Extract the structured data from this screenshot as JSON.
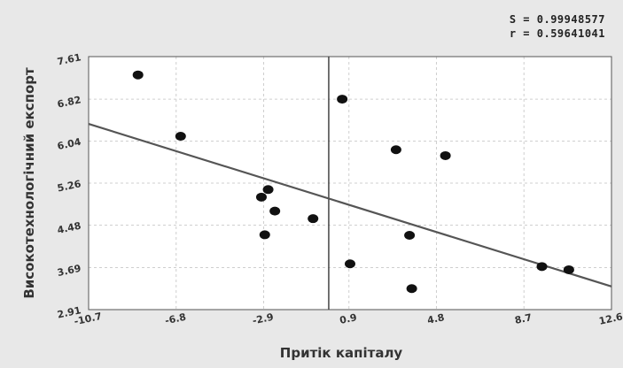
{
  "stats": {
    "s_text": "S = 0.99948577",
    "r_text": "r = 0.59641041"
  },
  "chart_data": {
    "type": "scatter",
    "xlabel": "Притік капіталу",
    "ylabel": "Високотехнологічний експорт",
    "xlim": [
      -10.7,
      12.6
    ],
    "ylim": [
      2.91,
      7.61
    ],
    "x_ticks": [
      -10.7,
      -6.8,
      -2.9,
      0.9,
      4.8,
      8.7,
      12.6
    ],
    "x_tick_labels": [
      "-10.7",
      "-6.8",
      "-2.9",
      "0.9",
      "4.8",
      "8.7",
      "12.6"
    ],
    "y_ticks": [
      2.91,
      3.69,
      4.48,
      5.26,
      6.04,
      6.82,
      7.61
    ],
    "y_tick_labels": [
      "2.91",
      "3.69",
      "4.48",
      "5.26",
      "6.04",
      "6.82",
      "7.61"
    ],
    "vertical_reference_x": 0.0,
    "grid": true,
    "points": [
      {
        "x": -8.5,
        "y": 7.27
      },
      {
        "x": -6.6,
        "y": 6.13
      },
      {
        "x": -3.0,
        "y": 5.0
      },
      {
        "x": -2.7,
        "y": 5.14
      },
      {
        "x": -2.4,
        "y": 4.74
      },
      {
        "x": -2.85,
        "y": 4.3
      },
      {
        "x": -0.7,
        "y": 4.6
      },
      {
        "x": 0.6,
        "y": 6.82
      },
      {
        "x": 0.95,
        "y": 3.76
      },
      {
        "x": 3.0,
        "y": 5.88
      },
      {
        "x": 3.6,
        "y": 4.29
      },
      {
        "x": 3.7,
        "y": 3.3
      },
      {
        "x": 5.2,
        "y": 5.77
      },
      {
        "x": 9.5,
        "y": 3.71
      },
      {
        "x": 10.7,
        "y": 3.65
      }
    ],
    "fit_line": {
      "x": [
        -10.7,
        12.6
      ],
      "y": [
        6.36,
        3.34
      ]
    }
  }
}
